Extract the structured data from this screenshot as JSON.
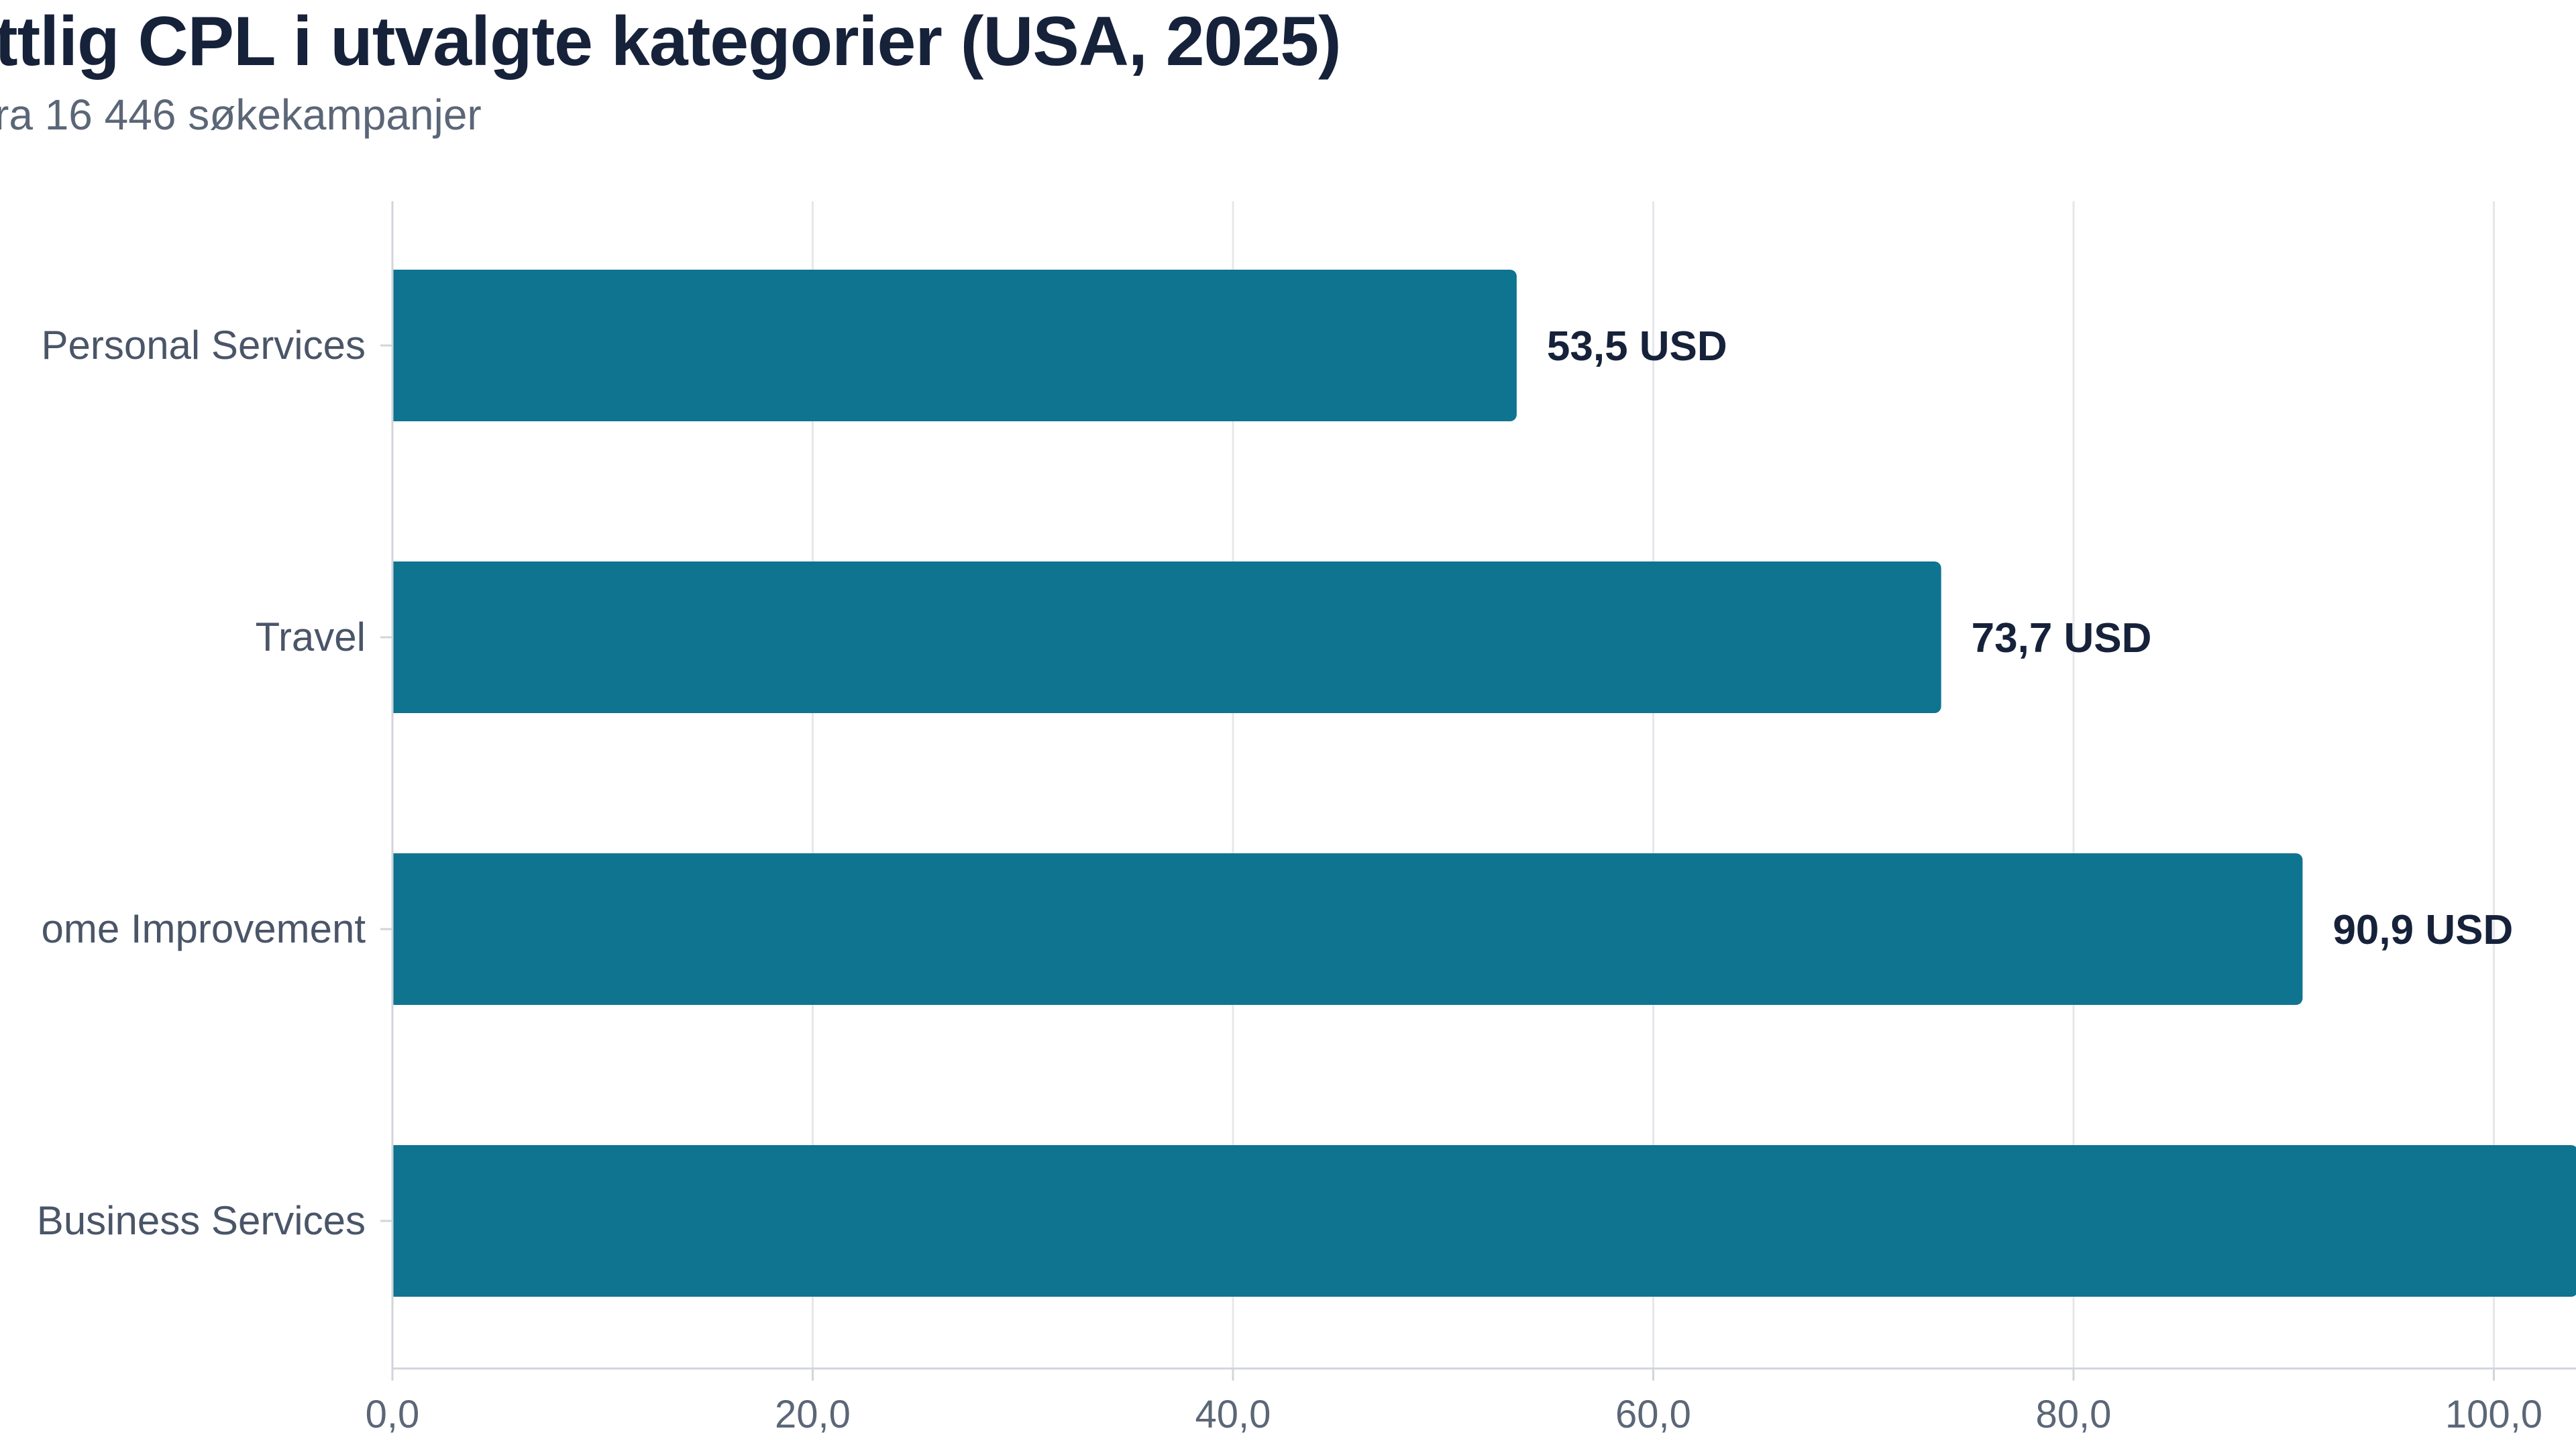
{
  "chart_data": {
    "type": "bar",
    "orientation": "horizontal",
    "title": "ttlig CPL i utvalgte kategorier (USA, 2025)",
    "subtitle": "ra 16 446 søkekampanjer",
    "categories": [
      "Personal Services",
      "Travel",
      "ome Improvement",
      "Business Services"
    ],
    "values": [
      53.5,
      73.7,
      90.9,
      104.0
    ],
    "data_labels": [
      "53,5 USD",
      "73,7 USD",
      "90,9 USD",
      ""
    ],
    "x_ticks": [
      0,
      20,
      40,
      60,
      80,
      100
    ],
    "x_tick_labels": [
      "0,0",
      "20,0",
      "40,0",
      "60,0",
      "80,0",
      "100,0"
    ],
    "xlim": [
      0,
      105
    ],
    "grid": true,
    "bar_color": "#0e7490",
    "grid_color": "#e5e7eb",
    "axis_color": "#d1d5db"
  }
}
